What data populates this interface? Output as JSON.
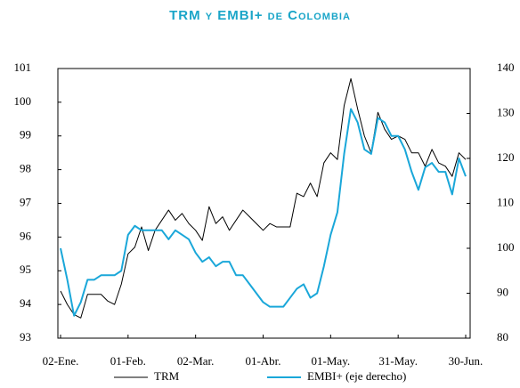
{
  "chart_data": {
    "type": "line",
    "title": "TRM y EMBI+ de Colombia",
    "categories": [
      "02-Ene.",
      null,
      null,
      null,
      null,
      null,
      null,
      null,
      null,
      null,
      "01-Feb.",
      null,
      null,
      null,
      null,
      null,
      null,
      null,
      null,
      null,
      "02-Mar.",
      null,
      null,
      null,
      null,
      null,
      null,
      null,
      null,
      null,
      "01-Abr.",
      null,
      null,
      null,
      null,
      null,
      null,
      null,
      null,
      null,
      "01-May.",
      null,
      null,
      null,
      null,
      null,
      null,
      null,
      null,
      null,
      "31-May.",
      null,
      null,
      null,
      null,
      null,
      null,
      null,
      null,
      null,
      "30-Jun."
    ],
    "series": [
      {
        "name": "TRM",
        "color": "#000000",
        "values": [
          94.4,
          94.0,
          93.7,
          93.6,
          94.3,
          94.3,
          94.3,
          94.1,
          94.0,
          94.6,
          95.5,
          95.7,
          96.3,
          95.6,
          96.2,
          96.5,
          96.8,
          96.5,
          96.7,
          96.4,
          96.2,
          95.9,
          96.9,
          96.4,
          96.6,
          96.2,
          96.5,
          96.8,
          96.6,
          96.4,
          96.2,
          96.4,
          96.3,
          96.3,
          96.3,
          97.3,
          97.2,
          97.6,
          97.2,
          98.2,
          98.5,
          98.3,
          99.9,
          100.7,
          99.8,
          99.0,
          98.5,
          99.7,
          99.2,
          98.9,
          99.0,
          98.9,
          98.5,
          98.5,
          98.1,
          98.6,
          98.2,
          98.1,
          97.8,
          98.5,
          98.3
        ]
      },
      {
        "name": "EMBI+ (eje derecho)",
        "color": "#1aa7d9",
        "axis": "y2",
        "values": [
          100,
          93,
          85,
          88,
          93,
          93,
          94,
          94,
          94,
          95,
          103,
          105,
          104,
          104,
          104,
          104,
          102,
          104,
          103,
          102,
          99,
          97,
          98,
          96,
          97,
          97,
          94,
          94,
          92,
          90,
          88,
          87,
          87,
          87,
          89,
          91,
          92,
          89,
          90,
          96,
          103,
          108,
          121,
          131,
          128,
          122,
          121,
          129,
          128,
          125,
          125,
          122,
          117,
          113,
          118,
          119,
          117,
          117,
          112,
          120,
          116
        ]
      }
    ],
    "ylim": [
      93,
      101
    ],
    "yticks": [
      93,
      94,
      95,
      96,
      97,
      98,
      99,
      100,
      101
    ],
    "y2lim": [
      80,
      140
    ],
    "y2ticks": [
      80,
      90,
      100,
      110,
      120,
      130,
      140
    ],
    "legend": "bottom"
  }
}
